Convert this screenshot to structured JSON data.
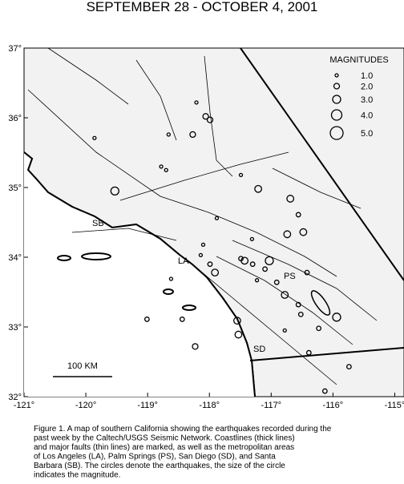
{
  "chart_data": {
    "type": "scatter",
    "title": "SEPTEMBER 28 - OCTOBER 4, 2001",
    "xlim": [
      -121,
      -114.85
    ],
    "ylim": [
      32,
      37
    ],
    "xticks": [
      {
        "value": -121,
        "label": "-121°"
      },
      {
        "value": -120,
        "label": "-120°"
      },
      {
        "value": -119,
        "label": "-119°"
      },
      {
        "value": -118,
        "label": "-118°"
      },
      {
        "value": -117,
        "label": "-117°"
      },
      {
        "value": -116,
        "label": "-116°"
      },
      {
        "value": -115,
        "label": "-115°"
      }
    ],
    "yticks": [
      {
        "value": 32,
        "label": "32°"
      },
      {
        "value": 33,
        "label": "33°"
      },
      {
        "value": 34,
        "label": "34°"
      },
      {
        "value": 35,
        "label": "35°"
      },
      {
        "value": 36,
        "label": "36°"
      },
      {
        "value": 37,
        "label": "37°"
      }
    ],
    "legend_title": "MAGNITUDES",
    "legend_sizes": [
      {
        "value": 1,
        "label": "1.0"
      },
      {
        "value": 2,
        "label": "2.0"
      },
      {
        "value": 3,
        "label": "3.0"
      },
      {
        "value": 4,
        "label": "4.0"
      },
      {
        "value": 5,
        "label": "5.0"
      }
    ],
    "x": [
      -118.06,
      -117.99,
      -118.27,
      -118.66,
      -118.21,
      -119.86,
      -119.53,
      -118.7,
      -118.78,
      -117.21,
      -116.69,
      -116.56,
      -116.48,
      -116.74,
      -117.31,
      -117.49,
      -117.43,
      -117.3,
      -117.1,
      -117.03,
      -118.14,
      -117.99,
      -117.91,
      -117.23,
      -116.91,
      -116.42,
      -116.78,
      -116.56,
      -116.52,
      -115.94,
      -116.23,
      -116.78,
      -116.39,
      -117.55,
      -117.53,
      -118.23,
      -118.44,
      -119.01,
      -118.62,
      -115.74,
      -116.13,
      -118.1,
      -117.88,
      -117.49
    ],
    "values": [
      36.02,
      35.97,
      35.76,
      35.76,
      36.22,
      35.71,
      34.95,
      35.25,
      35.3,
      34.98,
      34.84,
      34.61,
      34.36,
      34.33,
      34.26,
      33.98,
      33.95,
      33.9,
      33.83,
      33.95,
      34.03,
      33.9,
      33.78,
      33.67,
      33.64,
      33.78,
      33.46,
      33.32,
      33.18,
      33.14,
      32.98,
      32.95,
      32.63,
      33.09,
      32.89,
      32.72,
      33.11,
      33.11,
      33.69,
      32.43,
      32.08,
      34.18,
      34.56,
      35.18
    ],
    "sizes": [
      2.0,
      2.0,
      2.0,
      1.0,
      1.0,
      1.0,
      3.0,
      1.0,
      1.0,
      2.5,
      2.5,
      1.5,
      2.5,
      2.5,
      1.0,
      1.5,
      2.5,
      1.5,
      1.5,
      3.0,
      1.0,
      1.5,
      2.5,
      1.0,
      1.5,
      1.5,
      2.5,
      1.5,
      1.5,
      3.0,
      1.5,
      1.0,
      1.5,
      2.5,
      2.5,
      2.0,
      1.5,
      1.5,
      1.0,
      1.5,
      1.5,
      1.0,
      1.0,
      1.0
    ],
    "place_labels": [
      "SB",
      "LA",
      "PS",
      "SD"
    ],
    "scale_bar": "100 KM",
    "caption": [
      "Figure 1. A map of southern California showing the earthquakes recorded during the",
      "past week by the Caltech/USGS Seismic Network.  Coastlines (thick lines)",
      "and major faults (thin lines) are marked, as well as the metropolitan areas",
      "of Los Angeles (LA), Palm Springs (PS), San Diego (SD), and Santa",
      "Barbara (SB).  The circles denote the earthquakes, the size of the circle",
      "indicates the magnitude."
    ]
  }
}
